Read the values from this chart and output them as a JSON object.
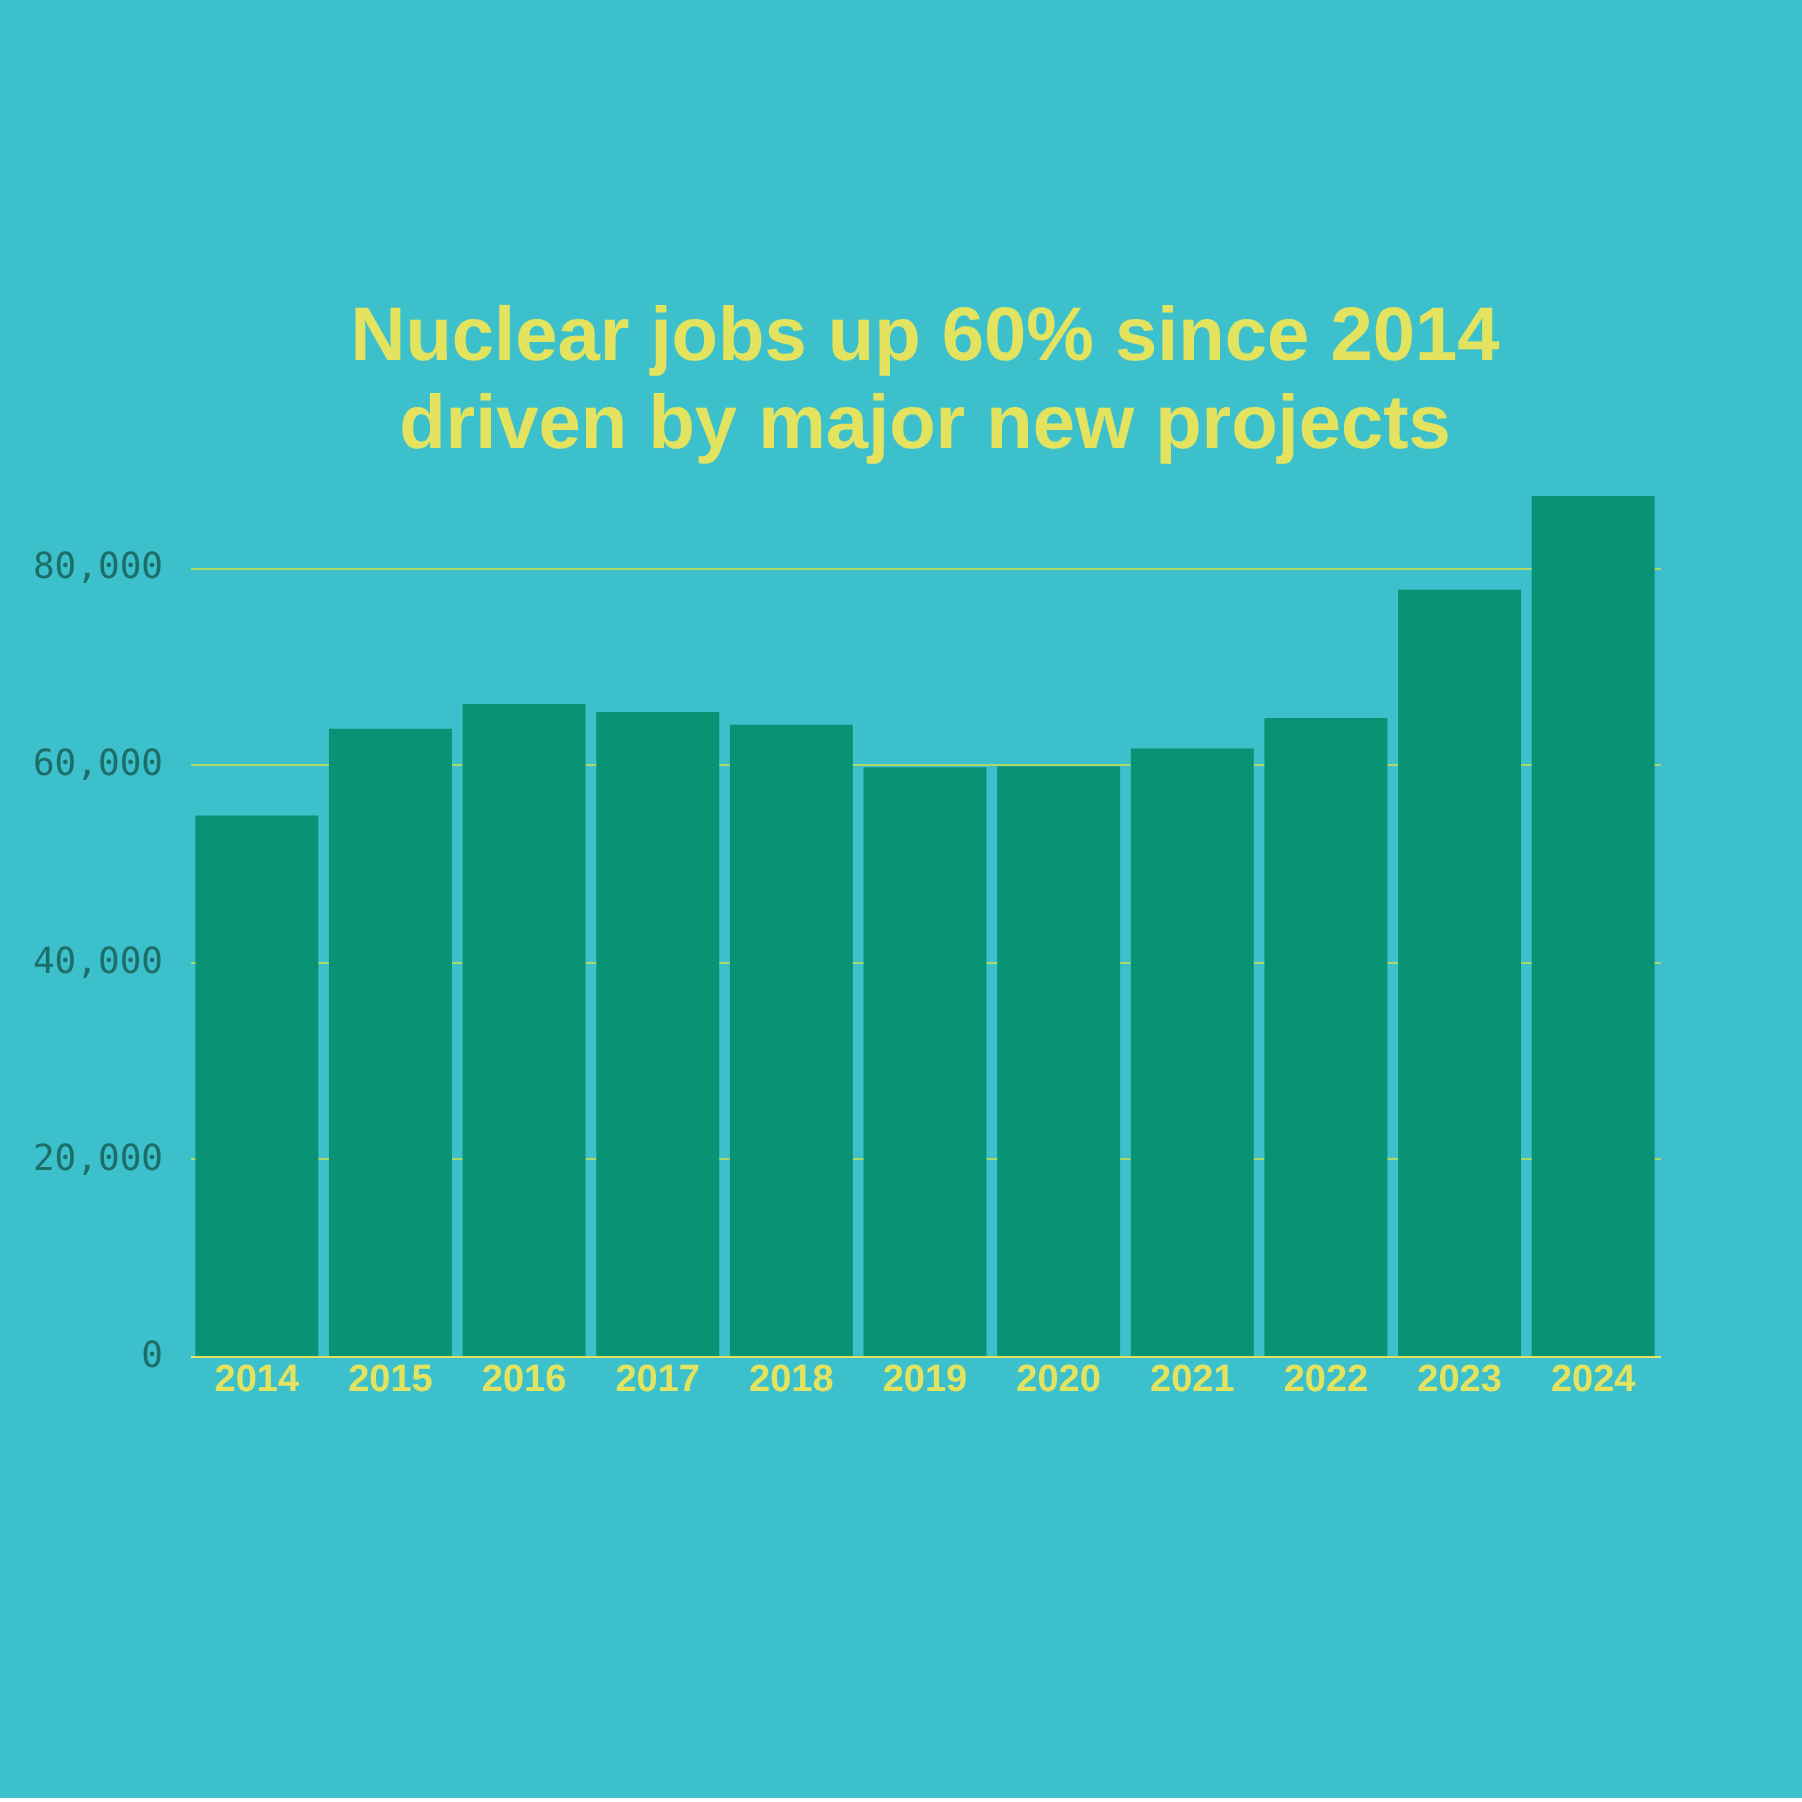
{
  "chart_data": {
    "type": "bar",
    "title": [
      "Nuclear jobs up 60% since 2014",
      "driven by major new projects"
    ],
    "categories": [
      "2014",
      "2015",
      "2016",
      "2017",
      "2018",
      "2019",
      "2020",
      "2021",
      "2022",
      "2023",
      "2024"
    ],
    "values": [
      54800,
      63600,
      66100,
      65300,
      64000,
      59700,
      59800,
      61600,
      64700,
      77700,
      87200
    ],
    "color": "#099274",
    "ylim": [
      0,
      87200
    ],
    "yticks": [
      {
        "value": 0,
        "label": "0"
      },
      {
        "value": 20000,
        "label": "20,000"
      },
      {
        "value": 40000,
        "label": "40,000"
      },
      {
        "value": 60000,
        "label": "60,000"
      },
      {
        "value": 80000,
        "label": "80,000"
      }
    ],
    "grid": "y"
  }
}
